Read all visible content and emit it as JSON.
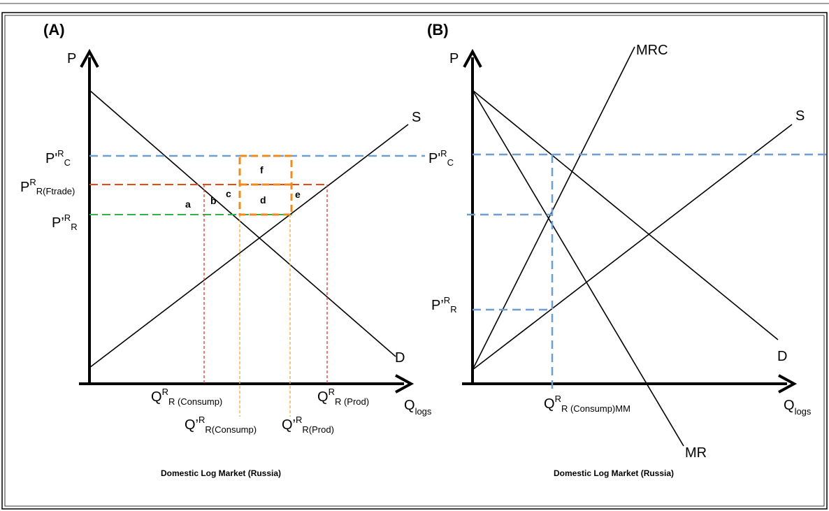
{
  "panel_a": {
    "label": "(A)",
    "axis_p": "P",
    "axis_q_main": "Q",
    "axis_q_sub": "logs",
    "supply_label": "S",
    "demand_label": "D",
    "price_world_main": "P'",
    "price_world_sup": "R",
    "price_world_sub": "C",
    "price_free_main": "P",
    "price_free_sup": "R",
    "price_free_sub": "R(Ftrade)",
    "price_dom_main": "P’",
    "price_dom_sup": "R",
    "price_dom_sub": "R",
    "areas": {
      "a": "a",
      "b": "b",
      "c": "c",
      "d": "d",
      "e": "e",
      "f": "f"
    },
    "q_consump_main": "Q",
    "q_consump_sup": "R",
    "q_consump_sub": "R (Consump)",
    "q_prod_main": "Q",
    "q_prod_sup": "R",
    "q_prod_sub": "R (Prod)",
    "q_consump2_main": "Q’",
    "q_consump2_sup": "R",
    "q_consump2_sub": "R(Consump)",
    "q_prod2_main": "Q’",
    "q_prod2_sup": "R",
    "q_prod2_sub": "R(Prod)",
    "caption": "Domestic Log Market (Russia)"
  },
  "panel_b": {
    "label": "(B)",
    "axis_p": "P",
    "axis_q_main": "Q",
    "axis_q_sub": "logs",
    "supply_label": "S",
    "demand_label": "D",
    "mrc_label": "MRC",
    "mr_label": "MR",
    "price_world_main": "P'",
    "price_world_sup": "R",
    "price_world_sub": "C",
    "price_dom_main": "P’",
    "price_dom_sup": "R",
    "price_dom_sub": "R",
    "q_mm_main": "Q",
    "q_mm_sup": "R",
    "q_mm_sub": "R (Consump)MM",
    "caption": "Domestic Log Market (Russia)"
  },
  "colors": {
    "world_price": "#6f9fcf",
    "free_trade_price": "#e64a19",
    "domestic_price": "#33b24a",
    "welfare_box": "#f08a1c"
  }
}
